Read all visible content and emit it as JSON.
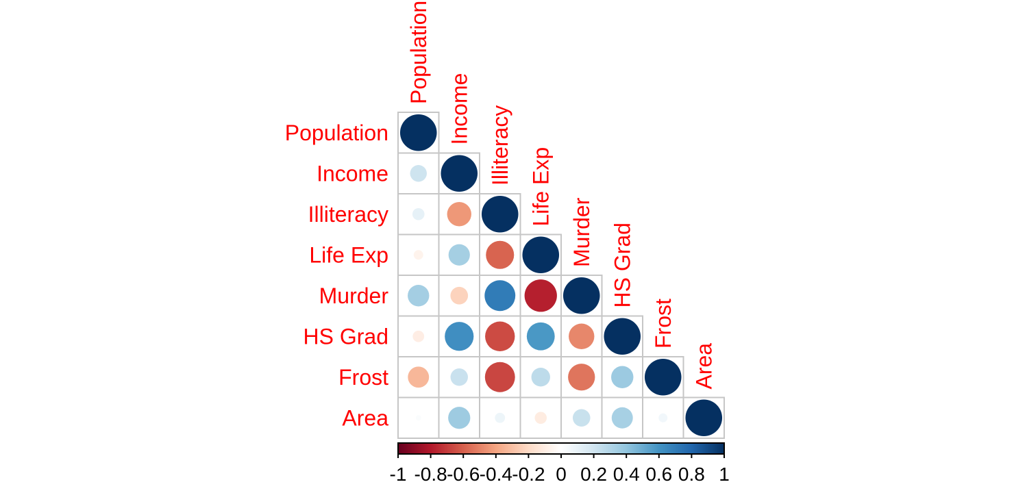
{
  "chart_data": {
    "type": "heatmap",
    "subtype": "correlogram-lower-triangle-circles",
    "variables": [
      "Population",
      "Income",
      "Illiteracy",
      "Life Exp",
      "Murder",
      "HS Grad",
      "Frost",
      "Area"
    ],
    "matrix_lower": [
      [
        1
      ],
      [
        0.208,
        1
      ],
      [
        0.108,
        -0.437,
        1
      ],
      [
        -0.068,
        0.34,
        -0.588,
        1
      ],
      [
        0.344,
        -0.23,
        0.703,
        -0.781,
        1
      ],
      [
        -0.098,
        0.62,
        -0.657,
        0.582,
        -0.488,
        1
      ],
      [
        -0.332,
        0.226,
        -0.672,
        0.262,
        -0.539,
        0.367,
        1
      ],
      [
        0.023,
        0.363,
        0.077,
        -0.107,
        0.228,
        0.334,
        0.059,
        1
      ]
    ],
    "colorbar": {
      "min": -1,
      "max": 1,
      "tick_labels": [
        "-1",
        "-0.8",
        "-0.6",
        "-0.4",
        "-0.2",
        "0",
        "0.2",
        "0.4",
        "0.6",
        "0.8",
        "1"
      ],
      "orientation": "horizontal",
      "position": "bottom"
    },
    "palette": [
      "#67001F",
      "#B2182B",
      "#D6604D",
      "#F4A582",
      "#FDDBC7",
      "#FFFFFF",
      "#D1E5F0",
      "#92C5DE",
      "#4393C3",
      "#2166AC",
      "#053061"
    ],
    "styles": {
      "label_color": "#FF0000",
      "tick_label_color": "#000000",
      "grid_color": "#C6C6C6",
      "colorbar_border_color": "#000000",
      "background_color": "#FFFFFF"
    },
    "legend_position": "bottom",
    "grid": true,
    "title": ""
  }
}
